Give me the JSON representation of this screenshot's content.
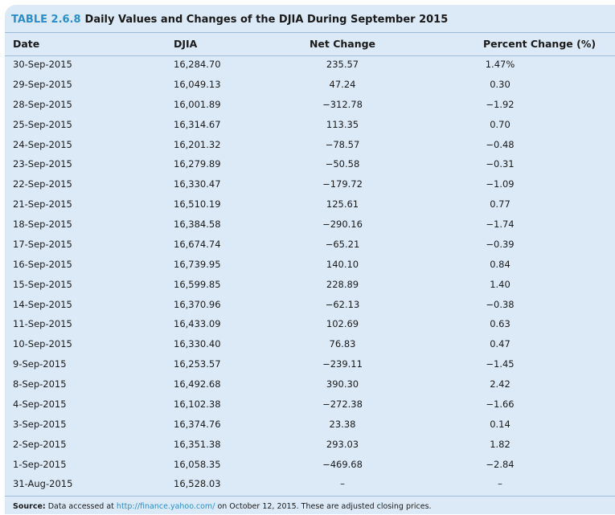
{
  "table": {
    "number": "TABLE 2.6.8",
    "title": "Daily Values and Changes of the DJIA During September 2015",
    "columns": {
      "date": "Date",
      "djia": "DJIA",
      "net_change": "Net Change",
      "percent_change": "Percent Change (%)"
    },
    "rows": [
      {
        "date": "30-Sep-2015",
        "djia": "16,284.70",
        "net_change": "235.57",
        "percent_change": "1.47%"
      },
      {
        "date": "29-Sep-2015",
        "djia": "16,049.13",
        "net_change": "47.24",
        "percent_change": "0.30"
      },
      {
        "date": "28-Sep-2015",
        "djia": "16,001.89",
        "net_change": "−312.78",
        "percent_change": "−1.92"
      },
      {
        "date": "25-Sep-2015",
        "djia": "16,314.67",
        "net_change": "113.35",
        "percent_change": "0.70"
      },
      {
        "date": "24-Sep-2015",
        "djia": "16,201.32",
        "net_change": "−78.57",
        "percent_change": "−0.48"
      },
      {
        "date": "23-Sep-2015",
        "djia": "16,279.89",
        "net_change": "−50.58",
        "percent_change": "−0.31"
      },
      {
        "date": "22-Sep-2015",
        "djia": "16,330.47",
        "net_change": "−179.72",
        "percent_change": "−1.09"
      },
      {
        "date": "21-Sep-2015",
        "djia": "16,510.19",
        "net_change": "125.61",
        "percent_change": "0.77"
      },
      {
        "date": "18-Sep-2015",
        "djia": "16,384.58",
        "net_change": "−290.16",
        "percent_change": "−1.74"
      },
      {
        "date": "17-Sep-2015",
        "djia": "16,674.74",
        "net_change": "−65.21",
        "percent_change": "−0.39"
      },
      {
        "date": "16-Sep-2015",
        "djia": "16,739.95",
        "net_change": "140.10",
        "percent_change": "0.84"
      },
      {
        "date": "15-Sep-2015",
        "djia": "16,599.85",
        "net_change": "228.89",
        "percent_change": "1.40"
      },
      {
        "date": "14-Sep-2015",
        "djia": "16,370.96",
        "net_change": "−62.13",
        "percent_change": "−0.38"
      },
      {
        "date": "11-Sep-2015",
        "djia": "16,433.09",
        "net_change": "102.69",
        "percent_change": "0.63"
      },
      {
        "date": "10-Sep-2015",
        "djia": "16,330.40",
        "net_change": "76.83",
        "percent_change": "0.47"
      },
      {
        "date": "9-Sep-2015",
        "djia": "16,253.57",
        "net_change": "−239.11",
        "percent_change": "−1.45"
      },
      {
        "date": "8-Sep-2015",
        "djia": "16,492.68",
        "net_change": "390.30",
        "percent_change": "2.42"
      },
      {
        "date": "4-Sep-2015",
        "djia": "16,102.38",
        "net_change": "−272.38",
        "percent_change": "−1.66"
      },
      {
        "date": "3-Sep-2015",
        "djia": "16,374.76",
        "net_change": "23.38",
        "percent_change": "0.14"
      },
      {
        "date": "2-Sep-2015",
        "djia": "16,351.38",
        "net_change": "293.03",
        "percent_change": "1.82"
      },
      {
        "date": "1-Sep-2015",
        "djia": "16,058.35",
        "net_change": "−469.68",
        "percent_change": "−2.84"
      },
      {
        "date": "31-Aug-2015",
        "djia": "16,528.03",
        "net_change": "–",
        "percent_change": "–"
      }
    ]
  },
  "source": {
    "label": "Source:",
    "prefix": "Data accessed at",
    "link": "http://finance.yahoo.com/",
    "suffix": "on October 12, 2015. These are adjusted closing prices."
  },
  "colors": {
    "panel": "#dce9f6",
    "accent": "#2a8fc9",
    "rule": "#9fbcd6"
  }
}
